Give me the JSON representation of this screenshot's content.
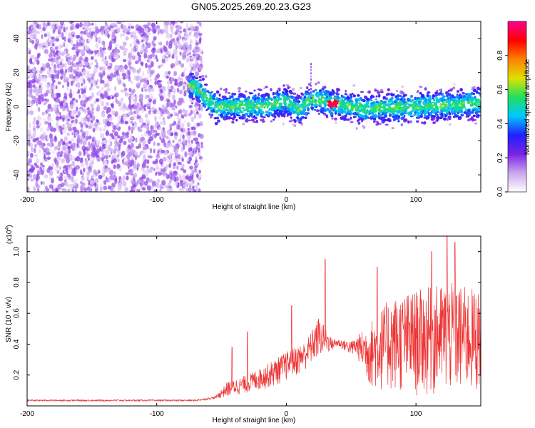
{
  "title": "GN05.2025.269.20.23.G23",
  "chart_data": [
    {
      "type": "heatmap",
      "xlabel": "Height of straight line (km)",
      "ylabel": "Frequency (Hz)",
      "xlim": [
        -200,
        150
      ],
      "ylim": [
        -50,
        50
      ],
      "xticks": [
        "-200",
        "-100",
        "0",
        "100"
      ],
      "yticks": [
        "-40",
        "-20",
        "0",
        "20",
        "40"
      ],
      "colorbar": {
        "label": "Normalized spectral amplitude",
        "range": [
          0,
          1
        ],
        "ticks": [
          "0.0",
          "0.2",
          "0.4",
          "0.6",
          "0.8"
        ],
        "colors": [
          "#ffffff",
          "#c9a6ee",
          "#7a22e6",
          "#2020ff",
          "#00c8ff",
          "#20e060",
          "#e0e000",
          "#ff8000",
          "#ff0000",
          "#ff0090"
        ]
      },
      "features": {
        "noise_region_km": [
          -200,
          -65
        ],
        "signal_band": [
          {
            "height": -70,
            "freq": 12
          },
          {
            "height": -55,
            "freq": 0
          },
          {
            "height": -20,
            "freq": 0
          },
          {
            "height": 0,
            "freq": 3
          },
          {
            "height": 10,
            "freq": -2
          },
          {
            "height": 20,
            "freq": 5
          },
          {
            "height": 35,
            "freq": 2
          },
          {
            "height": 60,
            "freq": -1
          },
          {
            "height": 100,
            "freq": 0
          },
          {
            "height": 150,
            "freq": 2
          }
        ],
        "peak": {
          "height": 36,
          "freq": 2,
          "amplitude": 1.0
        },
        "spike": {
          "height": 19,
          "freq": 25
        }
      }
    },
    {
      "type": "line",
      "xlabel": "Height of straight line (km)",
      "ylabel": "SNR (10 * v/v)",
      "scale_label": "(x10",
      "scale_exp": "4",
      "xlim": [
        -200,
        150
      ],
      "ylim": [
        0,
        1.1
      ],
      "xticks": [
        "-200",
        "-100",
        "0",
        "100"
      ],
      "yticks": [
        "0.2",
        "0.4",
        "0.6",
        "0.8",
        "1.0"
      ],
      "line_color": "#ee3333",
      "envelope": [
        {
          "x": -200,
          "y": 0.04
        },
        {
          "x": -70,
          "y": 0.04
        },
        {
          "x": -55,
          "y": 0.06
        },
        {
          "x": -45,
          "y": 0.16
        },
        {
          "x": -30,
          "y": 0.2
        },
        {
          "x": -15,
          "y": 0.27
        },
        {
          "x": 0,
          "y": 0.35
        },
        {
          "x": 15,
          "y": 0.42
        },
        {
          "x": 25,
          "y": 0.58
        },
        {
          "x": 35,
          "y": 0.44
        },
        {
          "x": 50,
          "y": 0.42
        },
        {
          "x": 60,
          "y": 0.5
        },
        {
          "x": 80,
          "y": 0.7
        },
        {
          "x": 100,
          "y": 0.75
        },
        {
          "x": 125,
          "y": 0.8
        },
        {
          "x": 150,
          "y": 0.75
        }
      ],
      "baseline": [
        {
          "x": -200,
          "y": 0.03
        },
        {
          "x": -70,
          "y": 0.03
        },
        {
          "x": -50,
          "y": 0.05
        },
        {
          "x": -30,
          "y": 0.08
        },
        {
          "x": -10,
          "y": 0.12
        },
        {
          "x": 10,
          "y": 0.2
        },
        {
          "x": 25,
          "y": 0.3
        },
        {
          "x": 40,
          "y": 0.38
        },
        {
          "x": 55,
          "y": 0.3
        },
        {
          "x": 65,
          "y": 0.1
        },
        {
          "x": 100,
          "y": 0.05
        },
        {
          "x": 150,
          "y": 0.06
        }
      ],
      "peaks": [
        {
          "x": -42,
          "y": 0.38
        },
        {
          "x": -30,
          "y": 0.48
        },
        {
          "x": 4,
          "y": 0.65
        },
        {
          "x": 30,
          "y": 0.95
        },
        {
          "x": 70,
          "y": 0.9
        },
        {
          "x": 112,
          "y": 1.0
        },
        {
          "x": 124,
          "y": 1.1
        },
        {
          "x": 130,
          "y": 1.06
        }
      ]
    }
  ]
}
